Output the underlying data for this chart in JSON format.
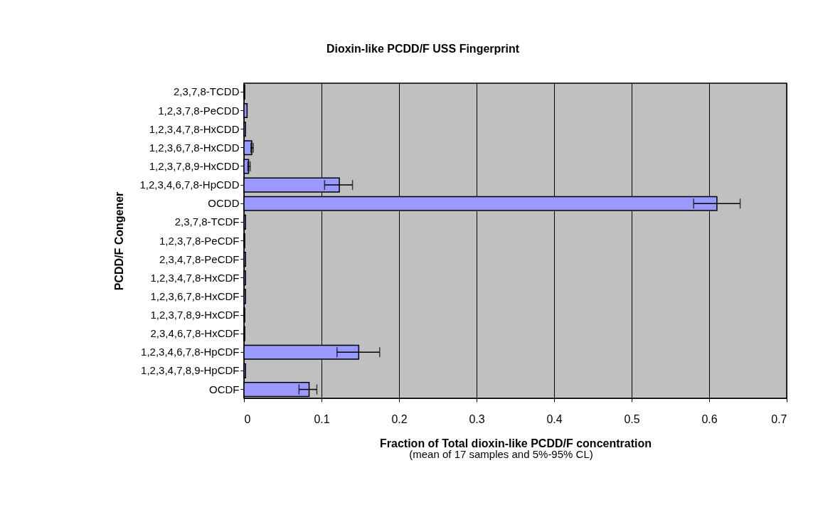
{
  "chart_data": {
    "type": "bar",
    "orientation": "horizontal",
    "title": "Dioxin-like PCDD/F USS Fingerprint",
    "xlabel": "Fraction of Total dioxin-like PCDD/F concentration",
    "ylabel": "PCDD/F Congener",
    "annotations": [
      "(mean of 17 samples and 5%-95% CL)"
    ],
    "categories": [
      "2,3,7,8-TCDD",
      "1,2,3,7,8-PeCDD",
      "1,2,3,4,7,8-HxCDD",
      "1,2,3,6,7,8-HxCDD",
      "1,2,3,7,8,9-HxCDD",
      "1,2,3,4,6,7,8-HpCDD",
      "OCDD",
      "2,3,7,8-TCDF",
      "1,2,3,7,8-PeCDF",
      "2,3,4,7,8-PeCDF",
      "1,2,3,4,7,8-HxCDF",
      "1,2,3,6,7,8-HxCDF",
      "1,2,3,7,8,9-HxCDF",
      "2,3,4,6,7,8-HxCDF",
      "1,2,3,4,6,7,8-HpCDF",
      "1,2,3,4,7,8,9-HpCDF",
      "OCDF"
    ],
    "values": [
      0.001,
      0.004,
      0.002,
      0.01,
      0.006,
      0.123,
      0.61,
      0.002,
      0.001,
      0.002,
      0.002,
      0.002,
      0.001,
      0.001,
      0.148,
      0.002,
      0.084
    ],
    "errors": [
      null,
      null,
      null,
      [
        0.009,
        0.012
      ],
      [
        0.005,
        0.008
      ],
      [
        0.104,
        0.14
      ],
      [
        0.58,
        0.64
      ],
      null,
      null,
      null,
      null,
      null,
      null,
      null,
      [
        0.12,
        0.175
      ],
      null,
      [
        0.071,
        0.094
      ]
    ],
    "color": "#9999ff",
    "xlim": [
      0,
      0.7
    ],
    "xticks": [
      0,
      0.1,
      0.2,
      0.3,
      0.4,
      0.5,
      0.6,
      0.7
    ],
    "grid": "x"
  }
}
